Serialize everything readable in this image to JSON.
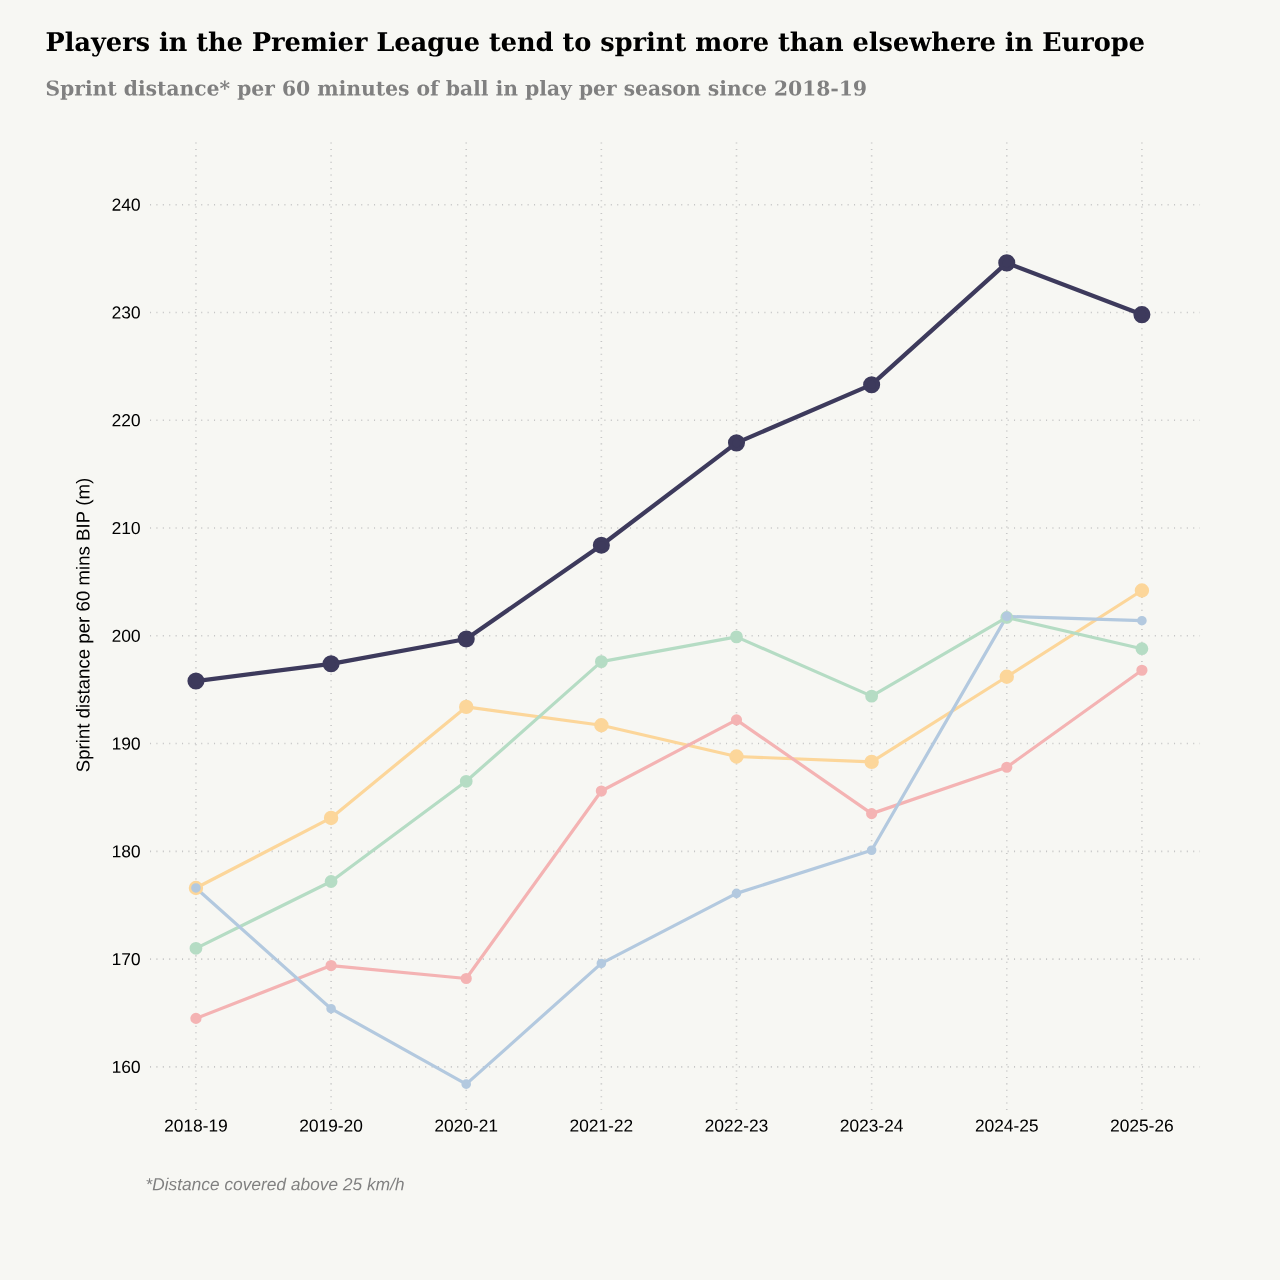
{
  "chart_data": {
    "type": "line",
    "title": "Players in the Premier League tend to sprint more than elsewhere in Europe",
    "subtitle": "Sprint distance* per 60 minutes of ball in play per season since 2018-19",
    "ylabel": "Sprint distance per 60 mins BIP (m)",
    "categories": [
      "2018-19",
      "2019-20",
      "2020-21",
      "2021-22",
      "2022-23",
      "2023-24",
      "2024-25",
      "2025-26"
    ],
    "series": [
      {
        "color": "#3d3a5c",
        "values": [
          195.8,
          197.4,
          199.7,
          208.4,
          217.9,
          223.3,
          234.6,
          229.8
        ]
      },
      {
        "color": "#fcd69a",
        "values": [
          176.6,
          183.1,
          193.4,
          191.7,
          188.8,
          188.3,
          196.2,
          204.2
        ]
      },
      {
        "color": "#b5dcc4",
        "values": [
          171.0,
          177.2,
          186.5,
          197.6,
          199.9,
          194.4,
          201.7,
          198.8
        ]
      },
      {
        "color": "#f4b3b3",
        "values": [
          164.5,
          169.4,
          168.2,
          185.6,
          192.2,
          183.5,
          187.8,
          196.8
        ]
      },
      {
        "color": "#b3c9df",
        "values": [
          176.6,
          165.4,
          158.4,
          169.6,
          176.1,
          180.1,
          201.8,
          201.4
        ]
      }
    ],
    "ylim": [
      156,
      246
    ],
    "yticks": [
      160,
      170,
      180,
      190,
      200,
      210,
      220,
      230,
      240
    ],
    "grid": true,
    "marker": "circle",
    "line_style": "solid",
    "annotations": [
      "*Distance covered above 25 km/h"
    ]
  }
}
